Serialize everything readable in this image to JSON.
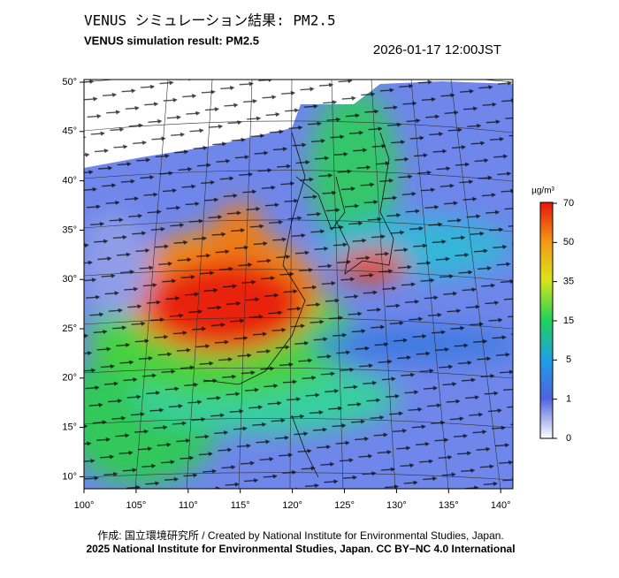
{
  "header": {
    "title_ja": "VENUS シミュレーション結果: PM2.5",
    "title_en": "VENUS simulation result: PM2.5",
    "timestamp": "2026-01-17 12:00JST"
  },
  "map": {
    "lat_labels": [
      "50°",
      "45°",
      "40°",
      "35°",
      "30°",
      "25°",
      "20°",
      "15°",
      "10°"
    ],
    "lon_labels": [
      "100°",
      "105°",
      "110°",
      "115°",
      "120°",
      "125°",
      "130°",
      "135°",
      "140°"
    ]
  },
  "colorbar": {
    "unit": "µg/m³",
    "labels": [
      "70",
      "50",
      "35",
      "15",
      "5",
      "1",
      "0"
    ]
  },
  "footer": {
    "credit": "作成: 国立環境研究所 / Created by National Institute for Environmental Studies, Japan.",
    "license": "2025 National Institute for Environmental Studies, Japan. CC BY−NC 4.0 International"
  }
}
